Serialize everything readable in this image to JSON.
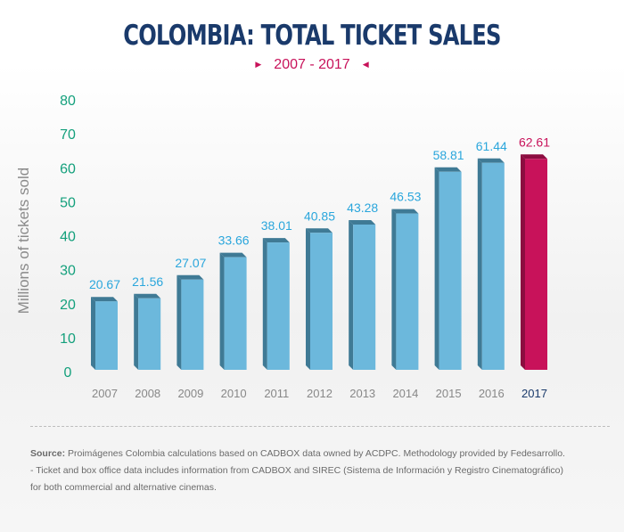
{
  "chart_data": {
    "type": "bar",
    "title": "COLOMBIA: TOTAL TICKET SALES",
    "subtitle": "2007 - 2017",
    "ylabel": "Millions of tickets sold",
    "xlabel": "",
    "ylim": [
      0,
      80
    ],
    "yticks": [
      0,
      10,
      20,
      30,
      40,
      50,
      60,
      70,
      80
    ],
    "categories": [
      "2007",
      "2008",
      "2009",
      "2010",
      "2011",
      "2012",
      "2013",
      "2014",
      "2015",
      "2016",
      "2017"
    ],
    "values": [
      20.67,
      21.56,
      27.07,
      33.66,
      38.01,
      40.85,
      43.28,
      46.53,
      58.81,
      61.44,
      62.61
    ],
    "value_labels": [
      "20.67",
      "21.56",
      "27.07",
      "33.66",
      "38.01",
      "40.85",
      "43.28",
      "46.53",
      "58.81",
      "61.44",
      "62.61"
    ],
    "highlight_index": 10,
    "colors": {
      "bar_front": "#6cb8dc",
      "bar_side": "#3f7a95",
      "bar_top": "#3f7a95",
      "highlight_front": "#c8125a",
      "highlight_side": "#8c0d40",
      "label": "#2aa6dc",
      "highlight_label": "#c8125a",
      "ytick": "#14a07c",
      "xtick": "#888888",
      "highlight_xtick": "#1a3a6b"
    }
  },
  "footer": {
    "source_label": "Source:",
    "source_text": " Proimágenes Colombia calculations based on CADBOX data owned by ACDPC. Methodology provided by Fedesarrollo.",
    "note_line1": "- Ticket and box office data includes information from CADBOX and SIREC (Sistema de Información y Registro Cinematográfico)",
    "note_line2": "for both commercial and alternative cinemas."
  }
}
